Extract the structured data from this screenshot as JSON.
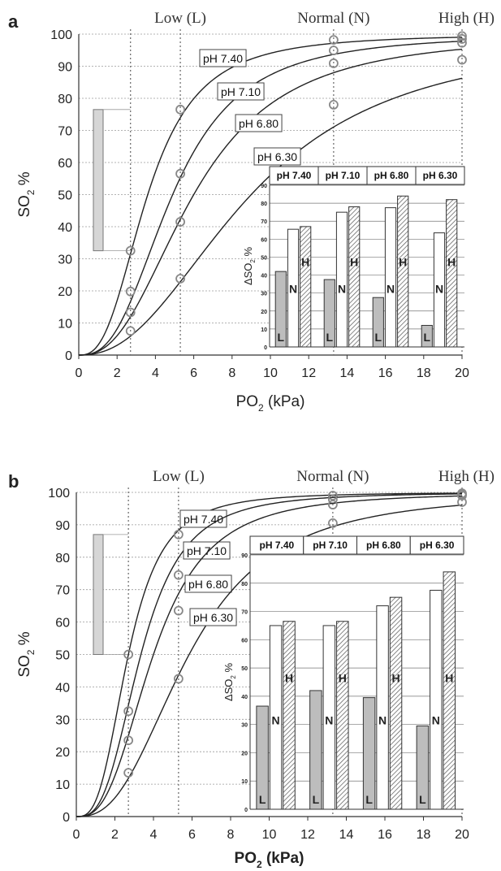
{
  "chart_data": [
    {
      "panel": "a",
      "type": "line",
      "xlabel": "PO",
      "xlabel_sub": "2",
      "xlabel_unit": " (kPa)",
      "ylabel": "SO",
      "ylabel_sub": "2",
      "ylabel_unit": " %",
      "xlim": [
        0,
        20
      ],
      "ylim": [
        0,
        100
      ],
      "x_ticks": [
        0,
        2,
        4,
        6,
        8,
        10,
        12,
        14,
        16,
        18,
        20
      ],
      "y_ticks": [
        0,
        10,
        20,
        30,
        40,
        50,
        60,
        70,
        80,
        90,
        100
      ],
      "grid": true,
      "region_labels": [
        {
          "text": "Low (L)",
          "x": 5.3
        },
        {
          "text": "Normal (N)",
          "x": 13.3
        },
        {
          "text": "High (H)",
          "x": 20
        }
      ],
      "reference_lines_x": [
        2.7,
        5.3,
        13.3,
        20
      ],
      "series": [
        {
          "name": "pH 7.40",
          "p50": 3.6,
          "n": 2.7,
          "markers": [
            [
              2.7,
              32.5
            ],
            [
              5.3,
              76.5
            ],
            [
              13.3,
              98.2
            ],
            [
              20,
              99.4
            ]
          ]
        },
        {
          "name": "pH 7.10",
          "p50": 4.9,
          "n": 2.7,
          "markers": [
            [
              2.7,
              19.8
            ],
            [
              5.3,
              56.5
            ],
            [
              13.3,
              94.9
            ],
            [
              20,
              98.5
            ]
          ]
        },
        {
          "name": "pH 6.80",
          "p50": 6.0,
          "n": 2.5,
          "markers": [
            [
              2.7,
              13.3
            ],
            [
              5.3,
              41.5
            ],
            [
              13.3,
              90.9
            ],
            [
              20,
              97.3
            ]
          ]
        },
        {
          "name": "pH 6.30",
          "p50": 9.0,
          "n": 2.3,
          "markers": [
            [
              2.7,
              7.5
            ],
            [
              5.3,
              23.8
            ],
            [
              13.3,
              78
            ],
            [
              20,
              92
            ]
          ]
        }
      ],
      "range_bar": [
        32.5,
        76.5
      ],
      "inset": {
        "type": "bar",
        "ylabel": "ΔSO",
        "ylabel_sub": "2",
        "ylabel_unit": " %",
        "ylim": [
          0,
          90
        ],
        "y_ticks": [
          0,
          10,
          20,
          30,
          40,
          50,
          60,
          70,
          80,
          90
        ],
        "groups": [
          "pH 7.40",
          "pH 7.10",
          "pH 6.80",
          "pH 6.30"
        ],
        "bar_labels": [
          "L",
          "N",
          "H"
        ],
        "values": {
          "L": [
            42,
            37.5,
            27.5,
            12
          ],
          "N": [
            65.5,
            75,
            77.5,
            63.5
          ],
          "H": [
            67,
            78,
            84,
            82
          ]
        }
      }
    },
    {
      "panel": "b",
      "type": "line",
      "xlabel": "PO",
      "xlabel_sub": "2",
      "xlabel_unit": " (kPa)",
      "ylabel": "SO",
      "ylabel_sub": "2",
      "ylabel_unit": " %",
      "xlim": [
        0,
        20
      ],
      "ylim": [
        0,
        100
      ],
      "x_ticks": [
        0,
        2,
        4,
        6,
        8,
        10,
        12,
        14,
        16,
        18,
        20
      ],
      "y_ticks": [
        0,
        10,
        20,
        30,
        40,
        50,
        60,
        70,
        80,
        90,
        100
      ],
      "grid": true,
      "region_labels": [
        {
          "text": "Low (L)",
          "x": 5.3
        },
        {
          "text": "Normal (N)",
          "x": 13.3
        },
        {
          "text": "High (H)",
          "x": 20
        }
      ],
      "reference_lines_x": [
        2.7,
        5.3,
        13.3,
        20
      ],
      "series": [
        {
          "name": "pH 7.40",
          "p50": 2.7,
          "n": 3.0,
          "markers": [
            [
              2.7,
              50
            ],
            [
              5.3,
              87
            ],
            [
              13.3,
              99
            ],
            [
              20,
              99.7
            ]
          ]
        },
        {
          "name": "pH 7.10",
          "p50": 3.35,
          "n": 3.0,
          "markers": [
            [
              2.7,
              32.5
            ],
            [
              5.3,
              74.5
            ],
            [
              13.3,
              97.8
            ],
            [
              20,
              99.4
            ]
          ]
        },
        {
          "name": "pH 6.80",
          "p50": 4.0,
          "n": 2.8,
          "markers": [
            [
              2.7,
              23.5
            ],
            [
              5.3,
              63.5
            ],
            [
              13.3,
              96.2
            ],
            [
              20,
              99
            ]
          ]
        },
        {
          "name": "pH 6.30",
          "p50": 5.85,
          "n": 2.6,
          "markers": [
            [
              2.7,
              13.5
            ],
            [
              5.3,
              42.5
            ],
            [
              13.3,
              90.5
            ],
            [
              20,
              97
            ]
          ]
        }
      ],
      "range_bar": [
        50,
        87
      ],
      "inset": {
        "type": "bar",
        "ylabel": "ΔSO",
        "ylabel_sub": "2",
        "ylabel_unit": " %",
        "ylim": [
          0,
          90
        ],
        "y_ticks": [
          0,
          10,
          20,
          30,
          40,
          50,
          60,
          70,
          80,
          90
        ],
        "groups": [
          "pH 7.40",
          "pH 7.10",
          "pH 6.80",
          "pH 6.30"
        ],
        "bar_labels": [
          "L",
          "N",
          "H"
        ],
        "values": {
          "L": [
            36.5,
            42,
            39.5,
            29.5
          ],
          "N": [
            65,
            65,
            72,
            77.5
          ],
          "H": [
            66.5,
            66.5,
            75,
            84
          ]
        }
      }
    }
  ]
}
